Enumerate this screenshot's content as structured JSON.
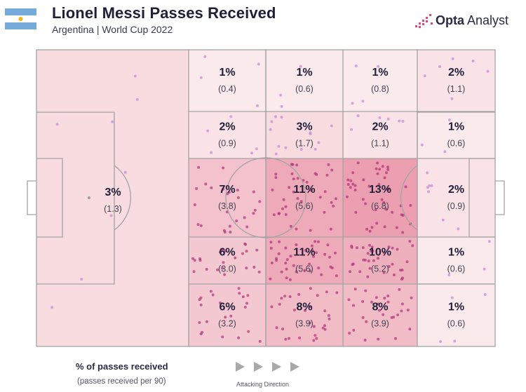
{
  "header": {
    "title": "Lionel Messi Passes Received",
    "subtitle": "Argentina | World Cup 2022",
    "brand_word1": "Opta",
    "brand_word2": "Analyst",
    "flag": "argentina-flag"
  },
  "legend": {
    "title": "% of passes received",
    "subtitle": "(passes received per 90)",
    "direction_label": "Attacking Direction"
  },
  "colors": {
    "heat_base": "#fbe9ea",
    "heat_max": "#e8a6b3",
    "lines": "#9e9e9e",
    "dots": "#c2185b",
    "title": "#1f1f3a",
    "flag_blue": "#75aadb"
  },
  "chart_data": {
    "type": "heatmap",
    "title": "Lionel Messi Passes Received",
    "subtitle": "Argentina | World Cup 2022",
    "zones": [
      {
        "zone": "defensive-half",
        "pct": "3%",
        "per90": "(1.3)",
        "value": 3
      },
      {
        "zone": "r1c1",
        "pct": "1%",
        "per90": "(0.4)",
        "value": 1
      },
      {
        "zone": "r1c2",
        "pct": "1%",
        "per90": "(0.6)",
        "value": 1
      },
      {
        "zone": "r1c3",
        "pct": "1%",
        "per90": "(0.8)",
        "value": 1
      },
      {
        "zone": "r1c4",
        "pct": "2%",
        "per90": "(1.1)",
        "value": 2
      },
      {
        "zone": "r2c1",
        "pct": "2%",
        "per90": "(0.9)",
        "value": 2
      },
      {
        "zone": "r2c2",
        "pct": "3%",
        "per90": "(1.7)",
        "value": 3
      },
      {
        "zone": "r2c3",
        "pct": "2%",
        "per90": "(1.1)",
        "value": 2
      },
      {
        "zone": "r2c4",
        "pct": "1%",
        "per90": "(0.6)",
        "value": 1
      },
      {
        "zone": "r3c1",
        "pct": "7%",
        "per90": "(3.8)",
        "value": 7
      },
      {
        "zone": "r3c2",
        "pct": "11%",
        "per90": "(5.6)",
        "value": 11
      },
      {
        "zone": "r3c3",
        "pct": "13%",
        "per90": "(6.8)",
        "value": 13
      },
      {
        "zone": "r3c4",
        "pct": "2%",
        "per90": "(0.9)",
        "value": 2
      },
      {
        "zone": "r4c1",
        "pct": "6%",
        "per90": "(3.0)",
        "value": 6
      },
      {
        "zone": "r4c2",
        "pct": "11%",
        "per90": "(5.6)",
        "value": 11
      },
      {
        "zone": "r4c3",
        "pct": "10%",
        "per90": "(5.2)",
        "value": 10
      },
      {
        "zone": "r4c4",
        "pct": "1%",
        "per90": "(0.6)",
        "value": 1
      },
      {
        "zone": "r5c1",
        "pct": "6%",
        "per90": "(3.2)",
        "value": 6
      },
      {
        "zone": "r5c2",
        "pct": "8%",
        "per90": "(3.9)",
        "value": 8
      },
      {
        "zone": "r5c3",
        "pct": "8%",
        "per90": "(3.9)",
        "value": 8
      },
      {
        "zone": "r5c4",
        "pct": "1%",
        "per90": "(0.6)",
        "value": 1
      }
    ]
  }
}
